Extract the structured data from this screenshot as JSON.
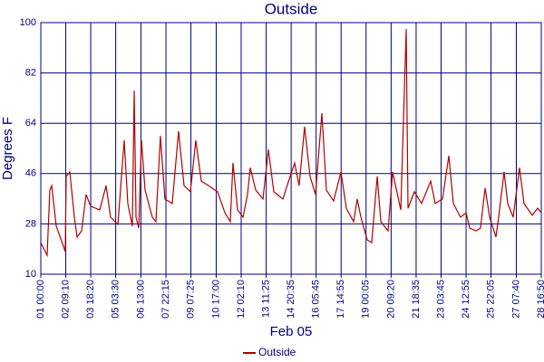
{
  "chart_data": {
    "type": "line",
    "title": "Outside",
    "y_label": "Degrees F",
    "x_label": "Feb 05",
    "xlim": [
      0,
      664.83
    ],
    "ylim": [
      10,
      100
    ],
    "grid": true,
    "legend": "bottom",
    "yticks": [
      10,
      28,
      46,
      64,
      82,
      100
    ],
    "xticks": [
      {
        "value": 0,
        "label": "01 00:00"
      },
      {
        "value": 33.17,
        "label": "02 09:10"
      },
      {
        "value": 66.33,
        "label": "03 18:20"
      },
      {
        "value": 99.5,
        "label": "05 03:30"
      },
      {
        "value": 133,
        "label": "06 13:00"
      },
      {
        "value": 166.25,
        "label": "07 22:15"
      },
      {
        "value": 199.42,
        "label": "09 07:25"
      },
      {
        "value": 233,
        "label": "10 17:00"
      },
      {
        "value": 266.17,
        "label": "12 02:10"
      },
      {
        "value": 299.42,
        "label": "13 11:25"
      },
      {
        "value": 332.58,
        "label": "14 20:35"
      },
      {
        "value": 365.75,
        "label": "16 05:45"
      },
      {
        "value": 398.92,
        "label": "17 14:55"
      },
      {
        "value": 432.08,
        "label": "19 00:05"
      },
      {
        "value": 465.33,
        "label": "20 09:20"
      },
      {
        "value": 498.58,
        "label": "21 18:35"
      },
      {
        "value": 531.75,
        "label": "23 03:45"
      },
      {
        "value": 564.92,
        "label": "24 12:55"
      },
      {
        "value": 598.08,
        "label": "25 22:05"
      },
      {
        "value": 631.67,
        "label": "27 07:40"
      },
      {
        "value": 664.83,
        "label": "28 16:50"
      }
    ],
    "x": [
      0,
      8.4,
      12.0,
      14.5,
      20.5,
      30.1,
      32.5,
      33.7,
      38.5,
      44.6,
      48.2,
      54.2,
      60.2,
      66.2,
      78.3,
      86.7,
      92.7,
      102.4,
      110.8,
      115.6,
      121.6,
      124.1,
      126.5,
      130.1,
      133.7,
      138.5,
      148.1,
      152.9,
      158.9,
      164.9,
      174.6,
      183.0,
      190.3,
      198.7,
      205.9,
      213.2,
      222.8,
      231.2,
      234.9,
      244.5,
      251.7,
      255.3,
      261.4,
      268.6,
      274.6,
      278.2,
      285.5,
      295.1,
      302.3,
      309.5,
      321.6,
      331.2,
      337.2,
      343.2,
      350.4,
      357.7,
      364.9,
      373.4,
      379.4,
      389.0,
      398.7,
      405.9,
      415.5,
      420.3,
      425.2,
      433.6,
      439.6,
      446.9,
      451.7,
      461.3,
      467.3,
      478.2,
      485.4,
      487.8,
      496.2,
      505.8,
      517.9,
      523.9,
      533.6,
      542.0,
      548.0,
      557.6,
      564.9,
      569.7,
      578.1,
      584.1,
      590.2,
      596.2,
      604.6,
      608.2,
      615.4,
      620.3,
      627.5,
      635.9,
      641.9,
      652.8,
      660.0,
      664.8
    ],
    "series": [
      {
        "name": "Outside",
        "color": "#b00000",
        "values": [
          21.3,
          16.8,
          40.1,
          41.7,
          27.2,
          20,
          18,
          45,
          46.6,
          30.4,
          23.3,
          25.5,
          38.5,
          34.3,
          33,
          41.7,
          30.4,
          27.8,
          57.9,
          35.3,
          27.2,
          75.7,
          30.4,
          26.5,
          57.9,
          40.1,
          30.4,
          28.8,
          59.5,
          36.9,
          35.3,
          61.2,
          41.7,
          39.5,
          57.9,
          43.3,
          41.7,
          40.1,
          39.5,
          32,
          28.8,
          49.8,
          33,
          30.4,
          38.5,
          48.1,
          40.1,
          36.9,
          54.6,
          39.5,
          36.9,
          45,
          49.8,
          41.7,
          62.8,
          45,
          38.5,
          67.6,
          40.1,
          36.2,
          46.6,
          33.6,
          28.8,
          36.9,
          30.4,
          22.3,
          21.3,
          45,
          28.8,
          25.5,
          46.6,
          33,
          97.7,
          33.6,
          39.5,
          35.3,
          43.3,
          35.3,
          36.9,
          52.4,
          35.3,
          30.4,
          32,
          26.5,
          25.5,
          26.5,
          40.8,
          30.4,
          23.3,
          30.4,
          46.6,
          35.3,
          30.4,
          48.1,
          35.3,
          31.1,
          33.6,
          32
        ]
      }
    ]
  }
}
